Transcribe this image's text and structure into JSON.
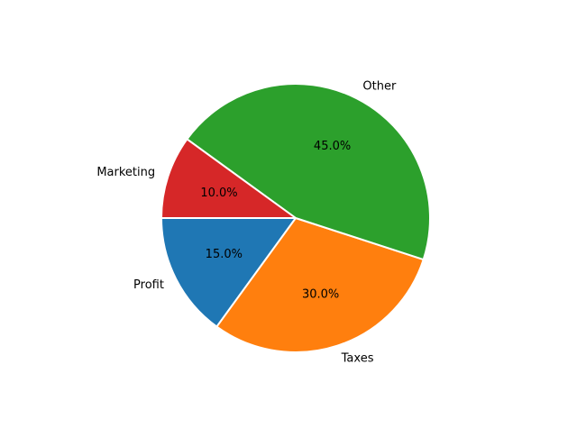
{
  "chart_data": {
    "type": "pie",
    "start_angle_deg": 180,
    "direction": "counterclockwise",
    "slice_edge_color": "#ffffff",
    "slices": [
      {
        "label": "Profit",
        "value": 15,
        "pct_label": "15.0%",
        "color": "#1f77b4"
      },
      {
        "label": "Taxes",
        "value": 30,
        "pct_label": "30.0%",
        "color": "#ff7f0e"
      },
      {
        "label": "Other",
        "value": 45,
        "pct_label": "45.0%",
        "color": "#2ca02c"
      },
      {
        "label": "Marketing",
        "value": 10,
        "pct_label": "10.0%",
        "color": "#d62728"
      }
    ]
  }
}
